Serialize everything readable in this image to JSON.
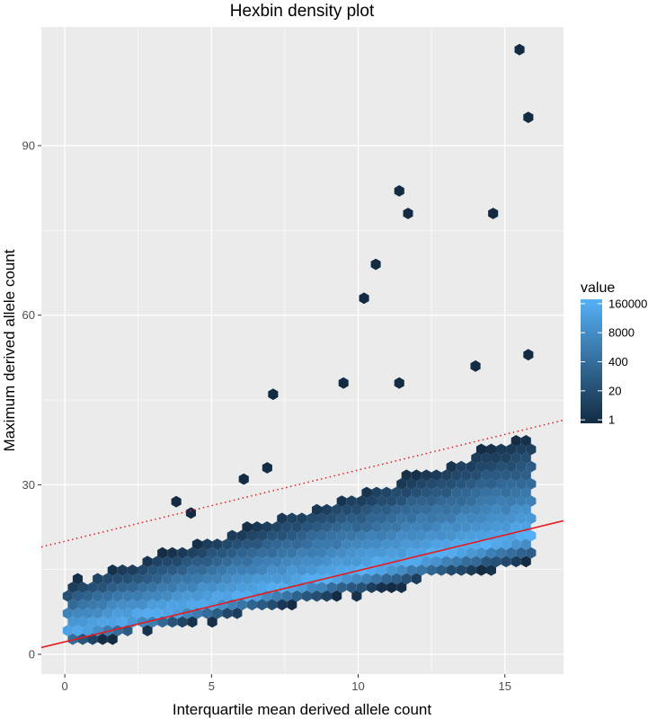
{
  "chart_data": {
    "type": "hexbin",
    "title": "Hexbin density plot",
    "xlabel": "Interquartile mean derived allele count",
    "ylabel": "Maximum derived allele count",
    "xlim": [
      -0.8,
      17.0
    ],
    "ylim": [
      -3.5,
      111.0
    ],
    "x_ticks": [
      0,
      5,
      10,
      15
    ],
    "y_ticks": [
      0,
      30,
      60,
      90
    ],
    "x_tick_labels": [
      "0",
      "5",
      "10",
      "15"
    ],
    "y_tick_labels": [
      "0",
      "30",
      "60",
      "90"
    ],
    "grid": true,
    "legend": {
      "title": "value",
      "position": "right",
      "scale": "log",
      "labels": [
        "160000",
        "8000",
        "400",
        "20",
        "1"
      ],
      "values": [
        160000,
        8000,
        400,
        20,
        1
      ],
      "color_low": "#132B43",
      "color_high": "#56B1F7"
    },
    "reference_lines": [
      {
        "style": "solid",
        "color": "#e41a1c",
        "intercept": 2.2,
        "slope": 1.26
      },
      {
        "style": "dotted",
        "color": "#e41a1c",
        "intercept": 20.0,
        "slope": 1.26
      }
    ],
    "band": {
      "x_min": 0.1,
      "x_max": 16.0,
      "bottom_intercept": 1.5,
      "bottom_slope": 0.95,
      "top_intercept": 12.5,
      "top_slope": 1.65,
      "densest_intercept": 3.5,
      "densest_slope": 1.1
    },
    "outliers": [
      [
        7.1,
        46
      ],
      [
        9.5,
        48
      ],
      [
        10.2,
        63
      ],
      [
        10.6,
        69
      ],
      [
        11.4,
        82
      ],
      [
        11.7,
        78
      ],
      [
        11.4,
        48
      ],
      [
        14.0,
        51
      ],
      [
        14.6,
        78
      ],
      [
        15.5,
        107
      ],
      [
        15.8,
        95
      ],
      [
        15.8,
        53
      ],
      [
        3.8,
        27
      ],
      [
        4.3,
        25
      ],
      [
        6.9,
        33
      ],
      [
        6.1,
        31
      ]
    ]
  }
}
